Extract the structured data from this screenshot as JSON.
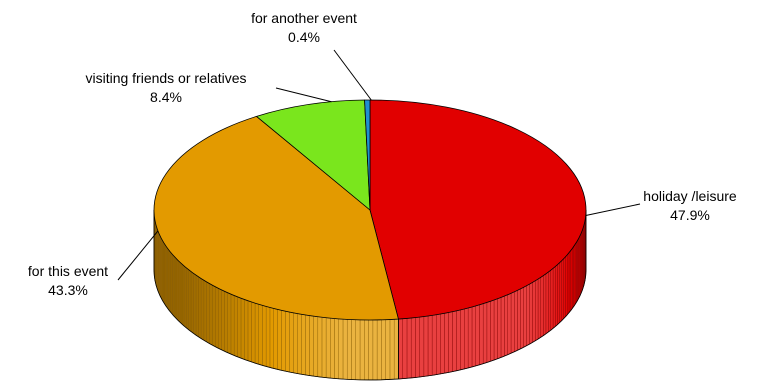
{
  "chart_data": {
    "type": "pie",
    "title": "",
    "slices": [
      {
        "name": "holiday /leisure",
        "value": 47.9,
        "label": "47.9%",
        "color": "#e10000"
      },
      {
        "name": "for this event",
        "value": 43.3,
        "label": "43.3%",
        "color": "#e39a00"
      },
      {
        "name": "visiting friends or relatives",
        "value": 8.4,
        "label": "8.4%",
        "color": "#7ae61d"
      },
      {
        "name": "for another event",
        "value": 0.4,
        "label": "0.4%",
        "color": "#1f8fd1"
      }
    ],
    "style": "3d",
    "legend": "none"
  }
}
